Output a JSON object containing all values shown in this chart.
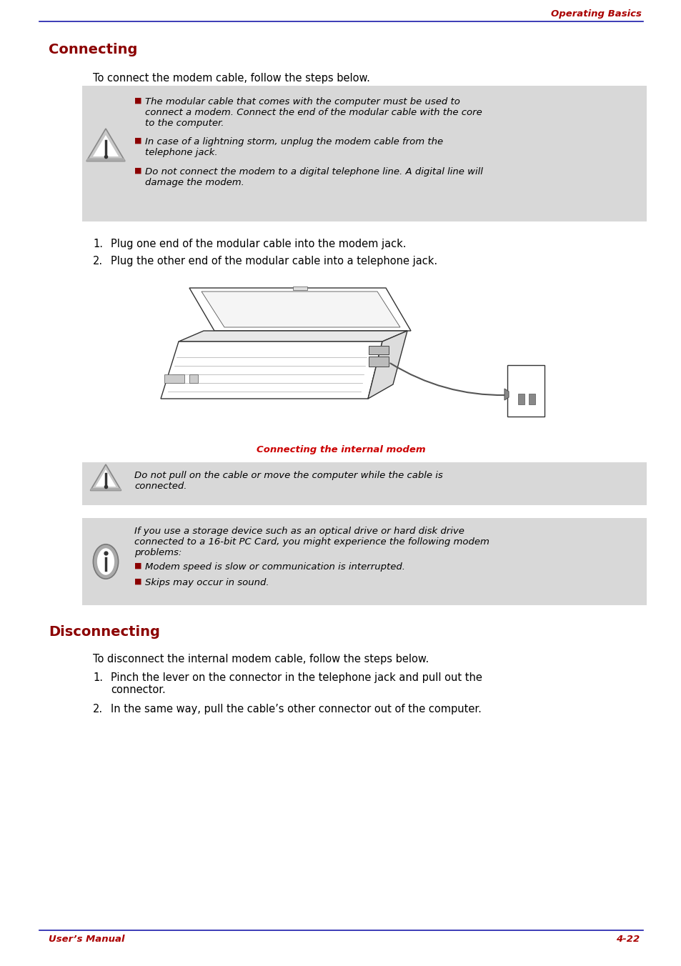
{
  "page_bg": "#ffffff",
  "header_text": "Operating Basics",
  "header_color": "#aa0000",
  "header_line_color": "#1a1aaa",
  "footer_left": "User’s Manual",
  "footer_right": "4-22",
  "footer_color": "#aa0000",
  "footer_line_color": "#1a1aaa",
  "section1_title": "Connecting",
  "section1_title_color": "#8b0000",
  "section1_intro": "To connect the modem cable, follow the steps below.",
  "warning_bg": "#d8d8d8",
  "warning_item1_line1": "The modular cable that comes with the computer must be used to",
  "warning_item1_line2": "connect a modem. Connect the end of the modular cable with the core",
  "warning_item1_line3": "to the computer.",
  "warning_item2_line1": "In case of a lightning storm, unplug the modem cable from the",
  "warning_item2_line2": "telephone jack.",
  "warning_item3_line1": "Do not connect the modem to a digital telephone line. A digital line will",
  "warning_item3_line2": "damage the modem.",
  "step1_text": "Plug one end of the modular cable into the modem jack.",
  "step2_text": "Plug the other end of the modular cable into a telephone jack.",
  "image_caption": "Connecting the internal modem",
  "image_caption_color": "#cc0000",
  "warning2_line1": "Do not pull on the cable or move the computer while the cable is",
  "warning2_line2": "connected.",
  "info_line1": "If you use a storage device such as an optical drive or hard disk drive",
  "info_line2": "connected to a 16-bit PC Card, you might experience the following modem",
  "info_line3": "problems:",
  "info_item1": "Modem speed is slow or communication is interrupted.",
  "info_item2": "Skips may occur in sound.",
  "section2_title": "Disconnecting",
  "section2_title_color": "#8b0000",
  "section2_intro": "To disconnect the internal modem cable, follow the steps below.",
  "disconnect_step1_line1": "Pinch the lever on the connector in the telephone jack and pull out the",
  "disconnect_step1_line2": "connector.",
  "disconnect_step2": "In the same way, pull the cable’s other connector out of the computer.",
  "bullet_color": "#8b0000",
  "text_color": "#000000",
  "font_size_body": 10.5,
  "font_size_header": 9.5,
  "font_size_section": 14,
  "font_size_footer": 9.5,
  "font_size_warning": 9.5
}
